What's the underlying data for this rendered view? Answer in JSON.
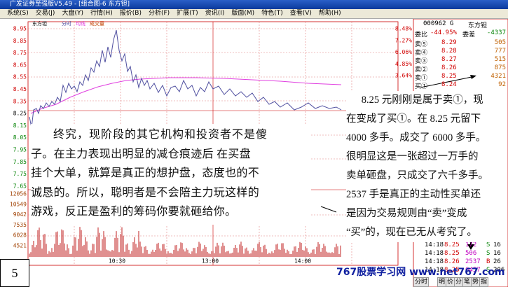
{
  "window": {
    "title": "广发证券至强版V5.49 - [组合图-6 东方钽]",
    "menu": [
      "系统(S)",
      "交易(J)",
      "大盘(Y)",
      "行情(H)",
      "报价(B)",
      "分析(F)",
      "扩展(T)",
      "资讯(I)",
      "版面(M)",
      "特色(T)",
      "查看(V)",
      "帮助(H)"
    ]
  },
  "chart": {
    "legend": [
      "东方钽",
      "分时",
      "均线",
      "成交量"
    ],
    "price_labels": [
      "8.95",
      "8.85",
      "8.75",
      "8.65",
      "8.55",
      "8.45",
      "8.35",
      "8.25",
      "8.15",
      "8.05",
      "7.95",
      "7.85",
      "7.75",
      "7.65"
    ],
    "percent_labels": [
      "8.48%",
      "7.27%",
      "6.06%",
      "4.85%",
      "3.64%"
    ],
    "volume_labels": [
      "12056",
      "10549",
      "9042",
      "7535",
      "6028",
      "4521"
    ],
    "time_labels": [
      "10:30",
      "13:00",
      "14:00"
    ]
  },
  "quote": {
    "code": "000962 G",
    "name": "东方钽",
    "ratio_label": "委比",
    "ratio": "-44.95%",
    "diff_label": "委差",
    "diff": "-4337",
    "book": [
      [
        "卖⑤",
        "8.29",
        "505"
      ],
      [
        "卖④",
        "8.28",
        "777"
      ],
      [
        "卖③",
        "8.27",
        "515"
      ],
      [
        "卖②",
        "8.26",
        "875"
      ],
      [
        "卖①",
        "8.25",
        "4321"
      ],
      [
        "买①",
        "8.24",
        "92"
      ]
    ]
  },
  "trades": [
    [
      "14:18",
      "8.25",
      "172",
      "S",
      "16"
    ],
    [
      "14:18",
      "8.25",
      "506",
      "S",
      "16"
    ],
    [
      "14:18",
      "8.26",
      "2537",
      "B",
      "26"
    ],
    [
      "14:18",
      "8.25",
      "6457",
      "S",
      "206"
    ]
  ],
  "tabs": [
    "分时",
    "明",
    "价",
    "分",
    "笔",
    "势",
    "指"
  ],
  "notes": {
    "left": [
      "终究，现阶段的其它机构和投资者不是傻",
      "子。在主力表现出明显的减仓痕迹后 在买盘",
      "挂个大单，就算是真正的想护盘，态度也的不",
      "诚恳的。所以，聪明者是不会陪主力玩这样的",
      "游戏，反正是盈利的筹码你要就砸给你。"
    ],
    "right": [
      "8.25 元刚刚是属于卖①，现",
      "在变成了买①。在 8.25 元留下",
      "4000 多手。成交了 6000 多手。",
      "很明显这是一张超过一万手的",
      "卖单砸盘，只成交了六千多手。",
      "2537 手是真正的主动性买单还",
      "是因为交易规则由“卖”变成",
      "“买”的，现在已无从考究了。"
    ]
  },
  "page_number": "5",
  "watermark": "767股票学习网 www.net767.com"
}
